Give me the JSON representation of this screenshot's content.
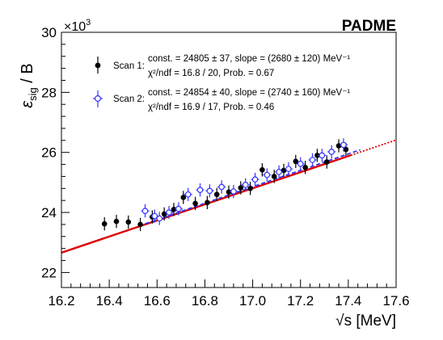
{
  "chart_data": {
    "type": "scatter",
    "experiment_label": "PADME",
    "xlabel_html": "√s [MeV]",
    "ylabel_main": "ε",
    "ylabel_sub": "sig",
    "ylabel_tail": " / B",
    "y_multiplier": "×10",
    "y_multiplier_exp": "3",
    "xlim": [
      16.2,
      17.6
    ],
    "ylim": [
      21.5,
      30
    ],
    "x_ticks": [
      16.2,
      16.4,
      16.6,
      16.8,
      17.0,
      17.2,
      17.4,
      17.6
    ],
    "x_tick_labels": [
      "16.2",
      "16.4",
      "16.6",
      "16.8",
      "17.0",
      "17.2",
      "17.4",
      "17.6"
    ],
    "y_ticks": [
      22,
      24,
      26,
      28,
      30
    ],
    "y_tick_labels": [
      "22",
      "24",
      "26",
      "28",
      "30"
    ],
    "series": [
      {
        "legend_label": "Scan 1:",
        "fit_line1": "const. = 24805 ± 37, slope = (2680 ± 120) MeV⁻¹",
        "fit_line2": "χ²/ndf = 16.8 / 20, Prob. = 0.67",
        "color": "#000000",
        "marker": "filled-circle",
        "points": [
          {
            "x": 16.38,
            "y": 23.62,
            "err": 0.22
          },
          {
            "x": 16.43,
            "y": 23.7,
            "err": 0.22
          },
          {
            "x": 16.48,
            "y": 23.68,
            "err": 0.22
          },
          {
            "x": 16.53,
            "y": 23.6,
            "err": 0.22
          },
          {
            "x": 16.58,
            "y": 23.85,
            "err": 0.22
          },
          {
            "x": 16.63,
            "y": 23.95,
            "err": 0.22
          },
          {
            "x": 16.67,
            "y": 24.1,
            "err": 0.22
          },
          {
            "x": 16.71,
            "y": 24.5,
            "err": 0.22
          },
          {
            "x": 16.76,
            "y": 24.3,
            "err": 0.22
          },
          {
            "x": 16.81,
            "y": 24.33,
            "err": 0.22
          },
          {
            "x": 16.85,
            "y": 24.6,
            "err": 0.22
          },
          {
            "x": 16.9,
            "y": 24.68,
            "err": 0.22
          },
          {
            "x": 16.95,
            "y": 24.82,
            "err": 0.22
          },
          {
            "x": 16.99,
            "y": 24.8,
            "err": 0.22
          },
          {
            "x": 17.04,
            "y": 25.42,
            "err": 0.22
          },
          {
            "x": 17.09,
            "y": 25.2,
            "err": 0.22
          },
          {
            "x": 17.13,
            "y": 25.4,
            "err": 0.22
          },
          {
            "x": 17.18,
            "y": 25.7,
            "err": 0.22
          },
          {
            "x": 17.22,
            "y": 25.5,
            "err": 0.22
          },
          {
            "x": 17.27,
            "y": 25.9,
            "err": 0.22
          },
          {
            "x": 17.31,
            "y": 25.68,
            "err": 0.22
          },
          {
            "x": 17.36,
            "y": 26.22,
            "err": 0.22
          },
          {
            "x": 17.39,
            "y": 26.1,
            "err": 0.22
          }
        ],
        "fit": {
          "x_range": [
            16.2,
            17.41
          ],
          "y_at_17": 24.805,
          "slope_per_mev": 2.68
        }
      },
      {
        "legend_label": "Scan 2:",
        "fit_line1": "const. = 24854 ± 40, slope = (2740 ± 160) MeV⁻¹",
        "fit_line2": "χ²/ndf = 16.9 / 17, Prob. = 0.46",
        "color": "#3333ff",
        "marker": "open-circle",
        "points": [
          {
            "x": 16.55,
            "y": 24.05,
            "err": 0.22
          },
          {
            "x": 16.59,
            "y": 23.88,
            "err": 0.22
          },
          {
            "x": 16.61,
            "y": 23.8,
            "err": 0.22
          },
          {
            "x": 16.65,
            "y": 24.0,
            "err": 0.22
          },
          {
            "x": 16.69,
            "y": 24.12,
            "err": 0.22
          },
          {
            "x": 16.73,
            "y": 24.6,
            "err": 0.22
          },
          {
            "x": 16.78,
            "y": 24.75,
            "err": 0.22
          },
          {
            "x": 16.82,
            "y": 24.72,
            "err": 0.22
          },
          {
            "x": 16.87,
            "y": 24.85,
            "err": 0.22
          },
          {
            "x": 16.92,
            "y": 24.7,
            "err": 0.22
          },
          {
            "x": 16.97,
            "y": 24.92,
            "err": 0.22
          },
          {
            "x": 17.01,
            "y": 25.1,
            "err": 0.22
          },
          {
            "x": 17.06,
            "y": 25.25,
            "err": 0.22
          },
          {
            "x": 17.11,
            "y": 25.35,
            "err": 0.22
          },
          {
            "x": 17.15,
            "y": 25.45,
            "err": 0.22
          },
          {
            "x": 17.2,
            "y": 25.62,
            "err": 0.22
          },
          {
            "x": 17.25,
            "y": 25.75,
            "err": 0.22
          },
          {
            "x": 17.29,
            "y": 25.9,
            "err": 0.22
          },
          {
            "x": 17.33,
            "y": 26.02,
            "err": 0.22
          },
          {
            "x": 17.38,
            "y": 26.25,
            "err": 0.22
          }
        ],
        "fit": {
          "x_range": [
            16.2,
            17.6
          ],
          "y_at_17": 24.854,
          "slope_per_mev": 2.74
        }
      }
    ]
  },
  "colors": {
    "fit_line": "#dd0000",
    "scan2_fit_line": "#3333ff",
    "axes": "#000000"
  }
}
